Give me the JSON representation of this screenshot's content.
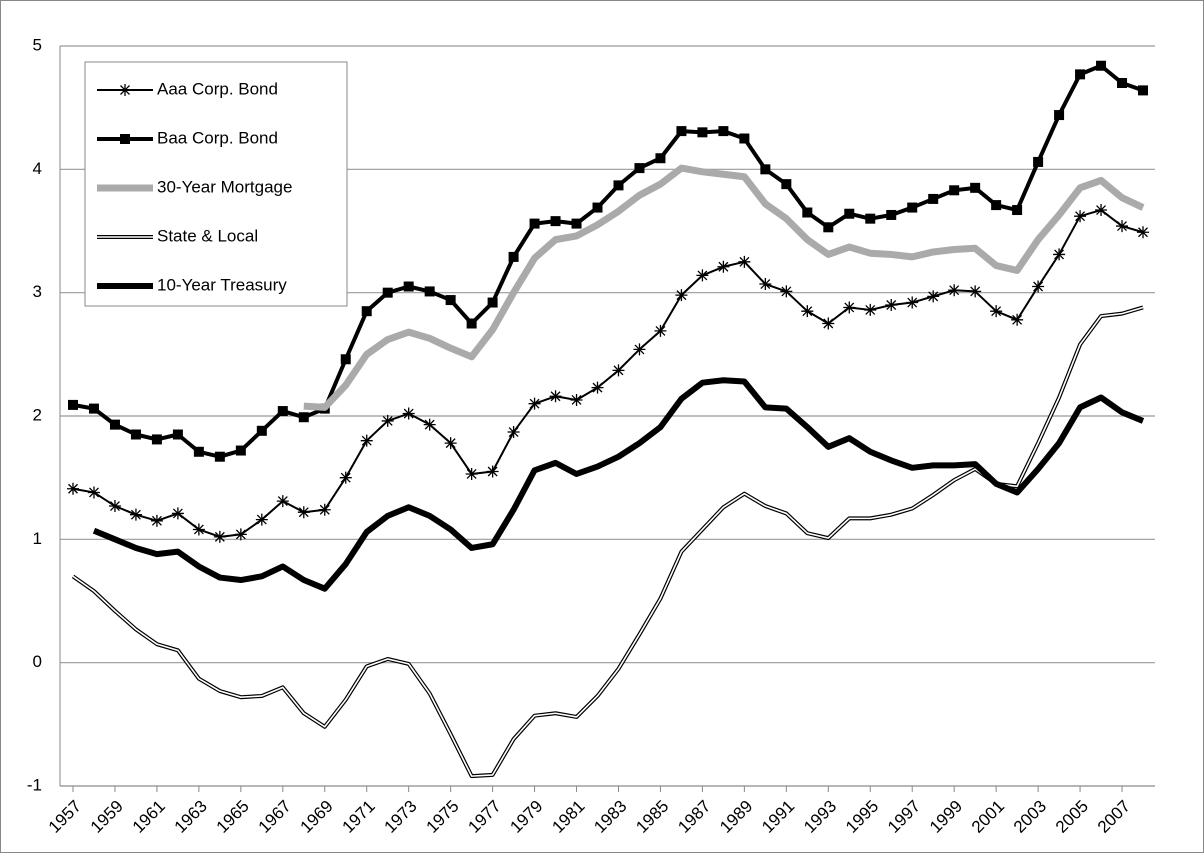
{
  "chart_data": {
    "type": "line",
    "x": [
      1957,
      1958,
      1959,
      1960,
      1961,
      1962,
      1963,
      1964,
      1965,
      1966,
      1967,
      1968,
      1969,
      1970,
      1971,
      1972,
      1973,
      1974,
      1975,
      1976,
      1977,
      1978,
      1979,
      1980,
      1981,
      1982,
      1983,
      1984,
      1985,
      1986,
      1987,
      1988,
      1989,
      1990,
      1991,
      1992,
      1993,
      1994,
      1995,
      1996,
      1997,
      1998,
      1999,
      2000,
      2001,
      2002,
      2003,
      2004,
      2005,
      2006,
      2007,
      2008
    ],
    "xlim": [
      1957,
      2008
    ],
    "xticks": [
      1957,
      1959,
      1961,
      1963,
      1965,
      1967,
      1969,
      1971,
      1973,
      1975,
      1977,
      1979,
      1981,
      1983,
      1985,
      1987,
      1989,
      1991,
      1993,
      1995,
      1997,
      1999,
      2001,
      2003,
      2005,
      2007
    ],
    "ylim": [
      -1,
      5
    ],
    "yticks": [
      -1,
      0,
      1,
      2,
      3,
      4,
      5
    ],
    "grid": true,
    "legend": "upper left",
    "series": [
      {
        "name": "Aaa Corp. Bond",
        "color": "#000000",
        "marker": "asterisk",
        "values": [
          1.41,
          1.38,
          1.27,
          1.2,
          1.15,
          1.21,
          1.08,
          1.02,
          1.04,
          1.16,
          1.31,
          1.22,
          1.24,
          1.5,
          1.8,
          1.96,
          2.02,
          1.93,
          1.78,
          1.53,
          1.55,
          1.87,
          2.1,
          2.16,
          2.13,
          2.23,
          2.37,
          2.54,
          2.69,
          2.98,
          3.14,
          3.21,
          3.25,
          3.07,
          3.01,
          2.85,
          2.75,
          2.88,
          2.86,
          2.9,
          2.92,
          2.97,
          3.02,
          3.01,
          2.85,
          2.78,
          3.05,
          3.31,
          3.62,
          3.67,
          3.54,
          3.49
        ]
      },
      {
        "name": "Baa Corp. Bond",
        "color": "#000000",
        "marker": "square",
        "values": [
          2.09,
          2.06,
          1.93,
          1.85,
          1.81,
          1.85,
          1.71,
          1.67,
          1.72,
          1.88,
          2.04,
          1.99,
          2.06,
          2.46,
          2.85,
          3.0,
          3.05,
          3.01,
          2.94,
          2.75,
          2.92,
          3.29,
          3.56,
          3.58,
          3.56,
          3.69,
          3.87,
          4.01,
          4.09,
          4.31,
          4.3,
          4.31,
          4.25,
          4.0,
          3.88,
          3.65,
          3.53,
          3.64,
          3.6,
          3.63,
          3.69,
          3.76,
          3.83,
          3.85,
          3.71,
          3.67,
          4.06,
          4.44,
          4.77,
          4.84,
          4.7,
          4.64
        ]
      },
      {
        "name": "30-Year Mortgage",
        "color": "#aaaaaa",
        "values": [
          null,
          null,
          null,
          null,
          null,
          null,
          null,
          null,
          null,
          null,
          null,
          2.08,
          2.07,
          2.25,
          2.5,
          2.62,
          2.68,
          2.63,
          2.55,
          2.48,
          2.7,
          3.0,
          3.28,
          3.43,
          3.46,
          3.55,
          3.66,
          3.79,
          3.88,
          4.01,
          3.98,
          3.96,
          3.94,
          3.72,
          3.6,
          3.43,
          3.31,
          3.37,
          3.32,
          3.31,
          3.29,
          3.33,
          3.35,
          3.36,
          3.22,
          3.18,
          3.43,
          3.63,
          3.85,
          3.91,
          3.77,
          3.69
        ]
      },
      {
        "name": "State & Local",
        "color": "#000000",
        "style": "double",
        "values": [
          0.7,
          0.58,
          0.42,
          0.27,
          0.15,
          0.1,
          -0.13,
          -0.23,
          -0.28,
          -0.27,
          -0.2,
          -0.41,
          -0.52,
          -0.3,
          -0.03,
          0.03,
          -0.01,
          -0.25,
          -0.58,
          -0.92,
          -0.91,
          -0.62,
          -0.43,
          -0.41,
          -0.44,
          -0.27,
          -0.05,
          0.23,
          0.52,
          0.9,
          1.08,
          1.26,
          1.37,
          1.27,
          1.21,
          1.05,
          1.01,
          1.17,
          1.17,
          1.2,
          1.25,
          1.36,
          1.48,
          1.57,
          1.45,
          1.43,
          1.78,
          2.15,
          2.58,
          2.81,
          2.83,
          2.88
        ]
      },
      {
        "name": "10-Year Treasury",
        "color": "#000000",
        "values": [
          null,
          1.07,
          1.0,
          0.93,
          0.88,
          0.9,
          0.78,
          0.69,
          0.67,
          0.7,
          0.78,
          0.67,
          0.6,
          0.8,
          1.06,
          1.19,
          1.26,
          1.19,
          1.08,
          0.93,
          0.96,
          1.24,
          1.56,
          1.62,
          1.53,
          1.59,
          1.67,
          1.78,
          1.91,
          2.14,
          2.27,
          2.29,
          2.28,
          2.07,
          2.06,
          1.91,
          1.75,
          1.82,
          1.71,
          1.64,
          1.58,
          1.6,
          1.6,
          1.61,
          1.45,
          1.38,
          1.57,
          1.78,
          2.07,
          2.15,
          2.03,
          1.96
        ]
      }
    ]
  }
}
